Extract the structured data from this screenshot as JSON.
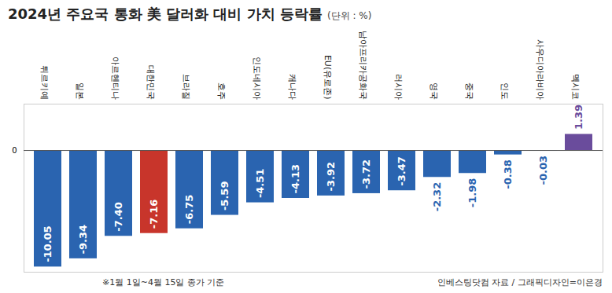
{
  "chart_data": {
    "type": "bar",
    "title": "2024년 주요국 통화 美 달러화 대비 가치 등락률",
    "subtitle": "(단위 : %)",
    "categories": [
      "튀르키예",
      "일본",
      "아르헨티나",
      "대한민국",
      "브라질",
      "호주",
      "인도네시아",
      "캐나다",
      "EU(유로존)",
      "남아프리카공화국",
      "러시아",
      "영국",
      "중국",
      "인도",
      "사우디아라비아",
      "멕시코"
    ],
    "values": [
      -10.05,
      -9.34,
      -7.4,
      -7.16,
      -6.75,
      -5.59,
      -4.51,
      -4.13,
      -3.92,
      -3.72,
      -3.47,
      -2.32,
      -1.98,
      -0.38,
      -0.03,
      1.39
    ],
    "value_labels": [
      "-10.05",
      "-9.34",
      "-7.40",
      "-7.16",
      "-6.75",
      "-5.59",
      "-4.51",
      "-4.13",
      "-3.92",
      "-3.72",
      "-3.47",
      "-2.32",
      "-1.98",
      "-0.38",
      "-0.03",
      "1.39"
    ],
    "colors": [
      "#2a64b0",
      "#2a64b0",
      "#2a64b0",
      "#c8352b",
      "#2a64b0",
      "#2a64b0",
      "#2a64b0",
      "#2a64b0",
      "#2a64b0",
      "#2a64b0",
      "#2a64b0",
      "#2a64b0",
      "#2a64b0",
      "#2a64b0",
      "#2a64b0",
      "#6a4c9c"
    ],
    "ylim": [
      -10.5,
      4
    ],
    "yticks": [
      0
    ],
    "grid": false,
    "data_labels": true,
    "annotations": [
      "※1월 1일~4월 15일 종가 기준",
      "인베스팅닷컴 자료 / 그래픽디자인=이은경"
    ]
  }
}
